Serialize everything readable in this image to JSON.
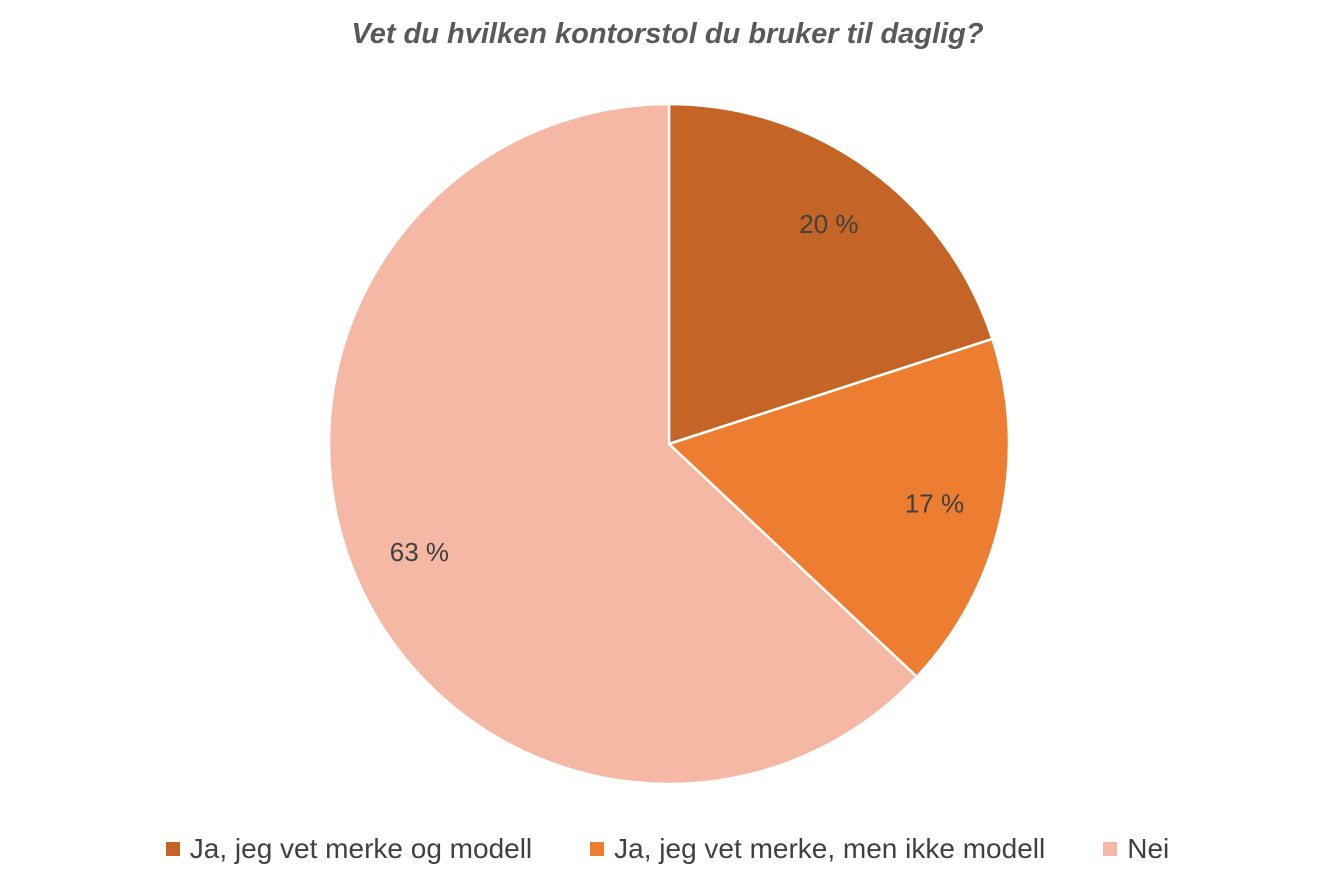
{
  "chart_data": {
    "type": "pie",
    "title": "Vet du hvilken kontorstol du bruker til daglig?",
    "slices": [
      {
        "label": "Ja, jeg vet merke og modell",
        "value": 20,
        "display": "20 %",
        "color": "#C46527"
      },
      {
        "label": "Ja, jeg vet merke, men ikke modell",
        "value": 17,
        "display": "17 %",
        "color": "#ED7D31"
      },
      {
        "label": "Nei",
        "value": 63,
        "display": "63 %",
        "color": "#F4B8A4"
      }
    ],
    "legend_position": "bottom",
    "start_angle": "top",
    "direction": "clockwise"
  }
}
